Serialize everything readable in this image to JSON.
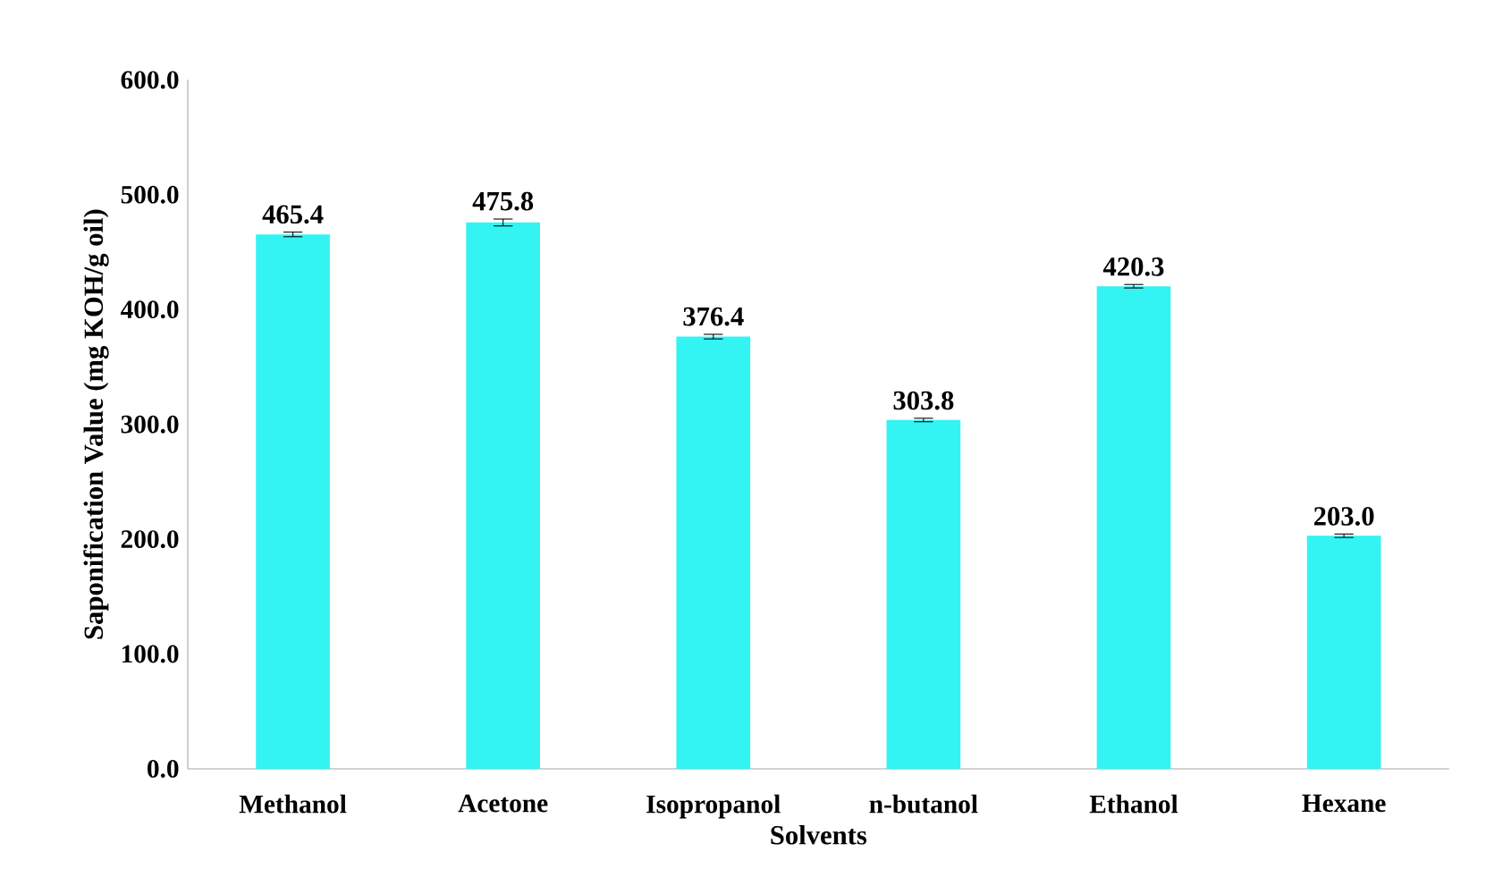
{
  "chart_data": {
    "type": "bar",
    "xlabel": "Solvents",
    "ylabel": "Saponification Value (mg KOH/g oil)",
    "categories": [
      "Methanol",
      "Acetone",
      "Isopropanol",
      "n-butanol",
      "Ethanol",
      "Hexane"
    ],
    "values": [
      465.4,
      475.8,
      376.4,
      303.8,
      420.3,
      203.0
    ],
    "errors": [
      2,
      3,
      2,
      1.5,
      1.5,
      1.5
    ],
    "value_labels": [
      "465.4",
      "475.8",
      "376.4",
      "303.8",
      "420.3",
      "203.0"
    ],
    "color": "#33f3f3",
    "ylim": [
      0,
      600
    ],
    "yticks": [
      {
        "value": 0,
        "label": "0.0"
      },
      {
        "value": 100,
        "label": "100.0"
      },
      {
        "value": 200,
        "label": "200.0"
      },
      {
        "value": 300,
        "label": "300.0"
      },
      {
        "value": 400,
        "label": "400.0"
      },
      {
        "value": 500,
        "label": "500.0"
      },
      {
        "value": 600,
        "label": "600.0"
      }
    ],
    "grid": false
  }
}
